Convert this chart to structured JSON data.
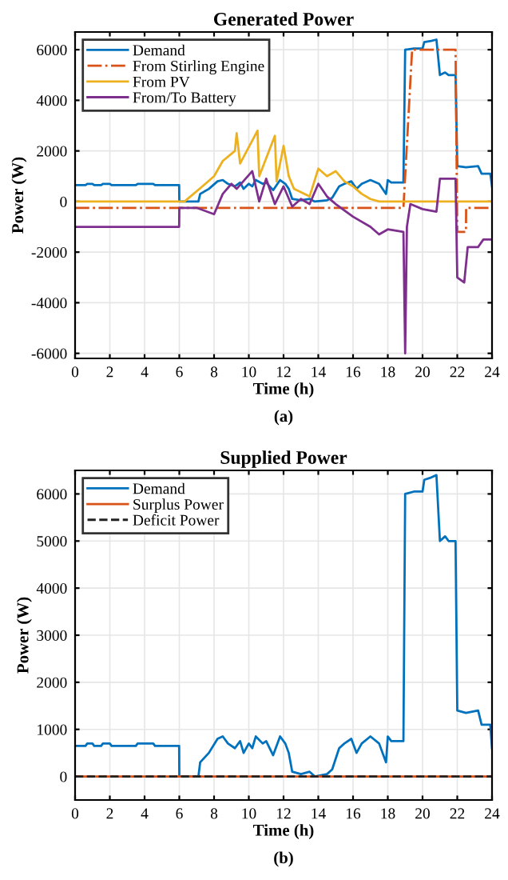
{
  "chart_data": [
    {
      "type": "line",
      "title": "Generated Power",
      "xlabel": "Time (h)",
      "ylabel": "Power (W)",
      "annotations": [
        "(a)"
      ],
      "xlim": [
        0,
        24
      ],
      "xticks": [
        0,
        2,
        4,
        6,
        8,
        10,
        12,
        14,
        16,
        18,
        20,
        22,
        24
      ],
      "ylim": [
        -6200,
        6700
      ],
      "yticks": [
        -6000,
        -4000,
        -2000,
        0,
        2000,
        4000,
        6000
      ],
      "grid": true,
      "legend": "top left",
      "series": [
        {
          "name": "Demand",
          "color": "#0072bd",
          "line_style": "solid",
          "x": [
            0,
            0.6,
            0.7,
            1.0,
            1.1,
            1.5,
            1.6,
            2.0,
            2.1,
            3.5,
            3.6,
            4.5,
            4.6,
            5.99,
            6.0,
            7.1,
            7.2,
            7.7,
            8.2,
            8.5,
            8.8,
            9.2,
            9.5,
            9.7,
            10.0,
            10.2,
            10.4,
            10.8,
            11.0,
            11.4,
            11.8,
            12.1,
            12.3,
            12.5,
            13.0,
            13.5,
            13.8,
            14.5,
            14.8,
            15.2,
            15.5,
            15.9,
            16.2,
            16.5,
            17.0,
            17.5,
            17.9,
            18.0,
            18.2,
            18.9,
            19.0,
            19.5,
            20.0,
            20.1,
            20.5,
            20.8,
            21.0,
            21.3,
            21.5,
            21.9,
            22.0,
            22.5,
            23.2,
            23.4,
            23.9,
            24
          ],
          "values": [
            650,
            650,
            700,
            700,
            650,
            650,
            700,
            700,
            650,
            650,
            700,
            700,
            650,
            650,
            0,
            0,
            300,
            500,
            800,
            850,
            700,
            600,
            750,
            500,
            700,
            600,
            850,
            700,
            750,
            450,
            850,
            700,
            500,
            100,
            50,
            100,
            0,
            50,
            150,
            600,
            700,
            800,
            500,
            700,
            850,
            700,
            300,
            850,
            750,
            750,
            6000,
            6050,
            6050,
            6300,
            6350,
            6400,
            5000,
            5100,
            5000,
            5000,
            1400,
            1350,
            1400,
            1100,
            1100,
            600
          ]
        },
        {
          "name": "From Stirling Engine",
          "color": "#d95319",
          "line_style": "dashdot",
          "x": [
            0,
            18.9,
            19.4,
            21.9,
            22.0,
            22.5,
            22.51,
            24
          ],
          "values": [
            -250,
            -250,
            6000,
            6000,
            -1200,
            -1200,
            -250,
            -250
          ]
        },
        {
          "name": "From PV",
          "color": "#edb120",
          "line_style": "solid",
          "x": [
            0,
            6.3,
            7.5,
            8.0,
            8.5,
            9.2,
            9.3,
            9.5,
            10.5,
            10.6,
            11.5,
            11.6,
            12.0,
            12.3,
            12.6,
            13.5,
            14.0,
            14.5,
            15.0,
            15.5,
            16.0,
            16.5,
            17.0,
            17.5,
            24
          ],
          "values": [
            0,
            0,
            700,
            1000,
            1600,
            2000,
            2700,
            1500,
            2800,
            1000,
            2600,
            800,
            2200,
            1000,
            500,
            200,
            1300,
            1000,
            1200,
            800,
            600,
            300,
            100,
            0,
            0
          ]
        },
        {
          "name": "From/To Battery",
          "color": "#7e2f8e",
          "line_style": "solid",
          "x": [
            0,
            5.99,
            6.0,
            7.0,
            8.0,
            8.5,
            9.0,
            9.3,
            10.2,
            10.6,
            11.0,
            11.5,
            12.0,
            12.5,
            13.0,
            13.5,
            14.0,
            14.5,
            15.0,
            16.0,
            17.0,
            17.5,
            18.0,
            18.9,
            19.0,
            19.1,
            19.3,
            20.0,
            20.8,
            21.0,
            21.9,
            22.0,
            22.4,
            22.6,
            23.2,
            23.5,
            24
          ],
          "values": [
            -1000,
            -1000,
            -250,
            -250,
            -500,
            300,
            700,
            500,
            1200,
            0,
            900,
            -100,
            600,
            -200,
            100,
            -100,
            700,
            200,
            -100,
            -600,
            -1000,
            -1300,
            -1100,
            -1200,
            -6000,
            -1000,
            -100,
            -300,
            -400,
            900,
            900,
            -3000,
            -3200,
            -1800,
            -1800,
            -1500,
            -1500
          ]
        }
      ]
    },
    {
      "type": "line",
      "title": "Supplied Power",
      "xlabel": "Time (h)",
      "ylabel": "Power (W)",
      "annotations": [
        "(b)"
      ],
      "xlim": [
        0,
        24
      ],
      "xticks": [
        0,
        2,
        4,
        6,
        8,
        10,
        12,
        14,
        16,
        18,
        20,
        22,
        24
      ],
      "ylim": [
        -500,
        6500
      ],
      "yticks": [
        0,
        1000,
        2000,
        3000,
        4000,
        5000,
        6000
      ],
      "grid": true,
      "legend": "top left",
      "series": [
        {
          "name": "Demand",
          "color": "#0072bd",
          "line_style": "solid",
          "x": [
            0,
            0.6,
            0.7,
            1.0,
            1.1,
            1.5,
            1.6,
            2.0,
            2.1,
            3.5,
            3.6,
            4.5,
            4.6,
            5.99,
            6.0,
            7.1,
            7.2,
            7.7,
            8.2,
            8.5,
            8.8,
            9.2,
            9.5,
            9.7,
            10.0,
            10.2,
            10.4,
            10.8,
            11.0,
            11.4,
            11.8,
            12.1,
            12.3,
            12.5,
            13.0,
            13.5,
            13.8,
            14.5,
            14.8,
            15.2,
            15.5,
            15.9,
            16.2,
            16.5,
            17.0,
            17.5,
            17.9,
            18.0,
            18.2,
            18.9,
            19.0,
            19.5,
            20.0,
            20.1,
            20.5,
            20.8,
            21.0,
            21.3,
            21.5,
            21.9,
            22.0,
            22.5,
            23.2,
            23.4,
            23.9,
            24
          ],
          "values": [
            650,
            650,
            700,
            700,
            650,
            650,
            700,
            700,
            650,
            650,
            700,
            700,
            650,
            650,
            0,
            0,
            300,
            500,
            800,
            850,
            700,
            600,
            750,
            500,
            700,
            600,
            850,
            700,
            750,
            450,
            850,
            700,
            500,
            100,
            50,
            100,
            0,
            50,
            150,
            600,
            700,
            800,
            500,
            700,
            850,
            700,
            300,
            850,
            750,
            750,
            6000,
            6050,
            6050,
            6300,
            6350,
            6400,
            5000,
            5100,
            5000,
            5000,
            1400,
            1350,
            1400,
            1100,
            1100,
            600
          ]
        },
        {
          "name": "Surplus Power",
          "color": "#d95319",
          "line_style": "solid",
          "x": [
            0,
            24
          ],
          "values": [
            0,
            0
          ]
        },
        {
          "name": "Deficit Power",
          "color": "#222222",
          "line_style": "dashed",
          "x": [
            0,
            24
          ],
          "values": [
            0,
            0
          ]
        }
      ]
    }
  ]
}
